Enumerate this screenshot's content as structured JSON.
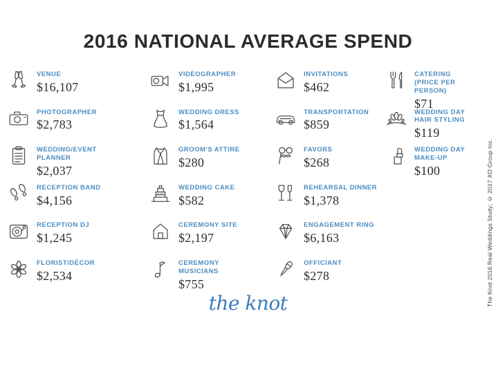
{
  "title": "2016 NATIONAL AVERAGE SPEND",
  "logo_text": "the knot",
  "credit": "The Knot 2016 Real Weddings Study; © 2017 XO Group Inc.",
  "colors": {
    "title_dark": "#2b2b2b",
    "label_blue": "#4a8cc2",
    "value_dark": "#2d2d2d",
    "icon_gray": "#55565a",
    "logo_blue": "#3c7cbe"
  },
  "items": [
    {
      "icon": "champagne-toast-icon",
      "label": "VENUE",
      "value": "$16,107"
    },
    {
      "icon": "camera-icon",
      "label": "PHOTOGRAPHER",
      "value": "$2,783"
    },
    {
      "icon": "clipboard-icon",
      "label": "WEDDING/EVENT PLANNER",
      "value": "$2,037"
    },
    {
      "icon": "dance-steps-icon",
      "label": "RECEPTION BAND",
      "value": "$4,156"
    },
    {
      "icon": "turntable-icon",
      "label": "RECEPTION DJ",
      "value": "$1,245"
    },
    {
      "icon": "flower-icon",
      "label": "FLORIST/DÉCOR",
      "value": "$2,534"
    },
    {
      "icon": "video-camera-icon",
      "label": "VIDEOGRAPHER",
      "value": "$1,995"
    },
    {
      "icon": "wedding-dress-icon",
      "label": "WEDDING DRESS",
      "value": "$1,564"
    },
    {
      "icon": "suit-jacket-icon",
      "label": "GROOM'S ATTIRE",
      "value": "$280"
    },
    {
      "icon": "wedding-cake-icon",
      "label": "WEDDING CAKE",
      "value": "$582"
    },
    {
      "icon": "house-icon",
      "label": "CEREMONY SITE",
      "value": "$2,197"
    },
    {
      "icon": "music-note-icon",
      "label": "CEREMONY MUSICIANS",
      "value": "$755"
    },
    {
      "icon": "envelope-icon",
      "label": "INVITATIONS",
      "value": "$462"
    },
    {
      "icon": "car-icon",
      "label": "TRANSPORTATION",
      "value": "$859"
    },
    {
      "icon": "disguise-glasses-icon",
      "label": "FAVORS",
      "value": "$268"
    },
    {
      "icon": "toast-glasses-icon",
      "label": "REHEARSAL DINNER",
      "value": "$1,378"
    },
    {
      "icon": "diamond-ring-icon",
      "label": "ENGAGEMENT RING",
      "value": "$6,163"
    },
    {
      "icon": "microphone-icon",
      "label": "OFFICIANT",
      "value": "$278"
    },
    {
      "icon": "fork-knife-icon",
      "label": "CATERING\n(PRICE PER PERSON)",
      "value": "$71"
    },
    {
      "icon": "tiara-icon",
      "label": "WEDDING DAY\nHAIR STYLING",
      "value": "$119"
    },
    {
      "icon": "lipstick-icon",
      "label": "WEDDING DAY\nMAKE-UP",
      "value": "$100"
    }
  ],
  "chart_data": {
    "type": "table",
    "title": "2016 NATIONAL AVERAGE SPEND",
    "categories": [
      "VENUE",
      "PHOTOGRAPHER",
      "WEDDING/EVENT PLANNER",
      "RECEPTION BAND",
      "RECEPTION DJ",
      "FLORIST/DÉCOR",
      "VIDEOGRAPHER",
      "WEDDING DRESS",
      "GROOM'S ATTIRE",
      "WEDDING CAKE",
      "CEREMONY SITE",
      "CEREMONY MUSICIANS",
      "INVITATIONS",
      "TRANSPORTATION",
      "FAVORS",
      "REHEARSAL DINNER",
      "ENGAGEMENT RING",
      "OFFICIANT",
      "CATERING (PRICE PER PERSON)",
      "WEDDING DAY HAIR STYLING",
      "WEDDING DAY MAKE-UP"
    ],
    "values": [
      16107,
      2783,
      2037,
      4156,
      1245,
      2534,
      1995,
      1564,
      280,
      582,
      2197,
      755,
      462,
      859,
      268,
      1378,
      6163,
      278,
      71,
      119,
      100
    ],
    "units": "USD",
    "source": "The Knot 2016 Real Weddings Study; © 2017 XO Group Inc."
  }
}
